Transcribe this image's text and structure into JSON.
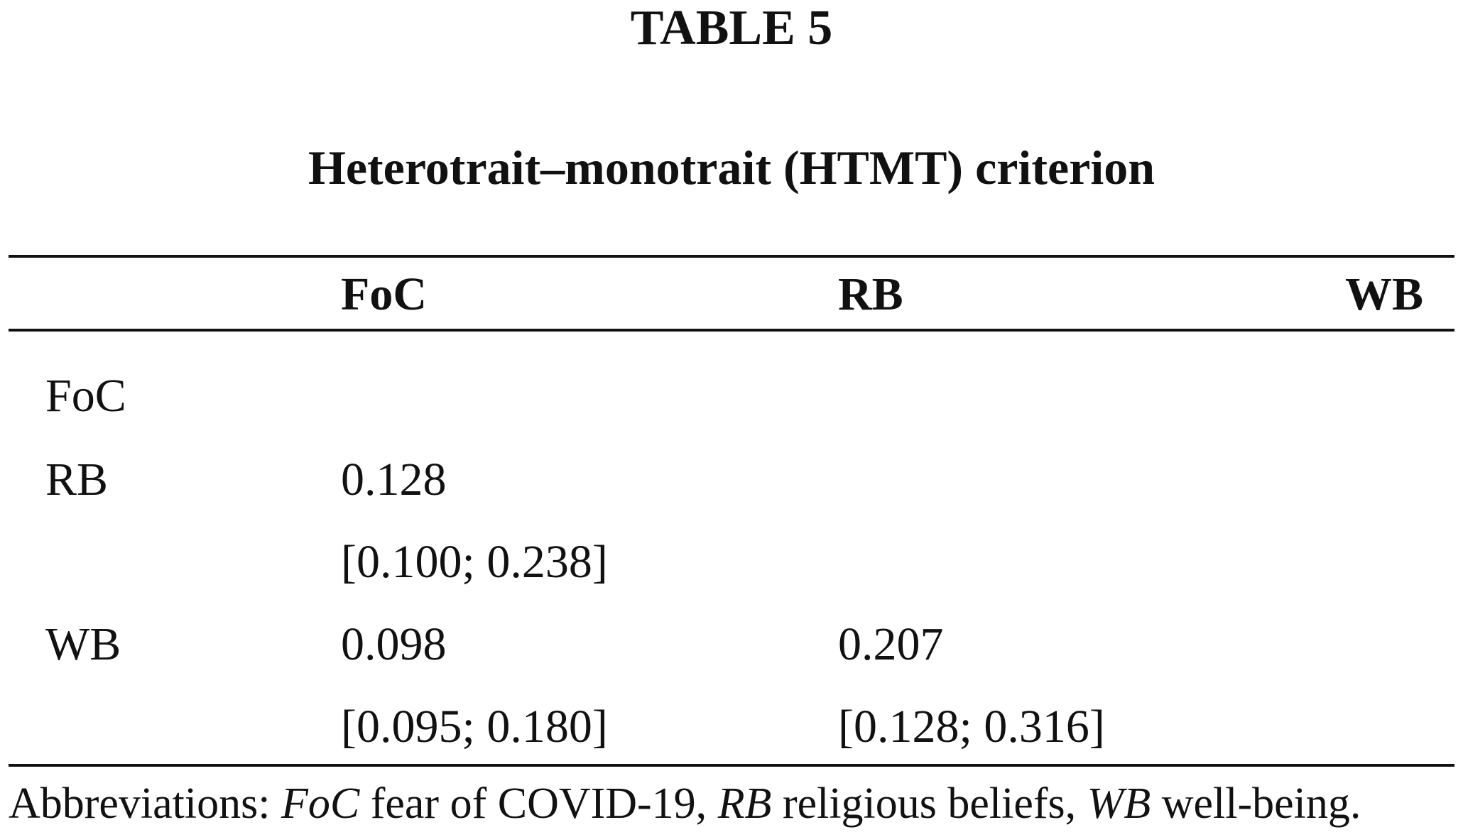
{
  "table": {
    "label": "TABLE 5",
    "title": "Heterotrait–monotrait (HTMT) criterion",
    "columns": [
      "FoC",
      "RB",
      "WB"
    ],
    "rows": [
      {
        "label": "FoC",
        "values": [
          "",
          "",
          ""
        ],
        "intervals": [
          "",
          "",
          ""
        ]
      },
      {
        "label": "RB",
        "values": [
          "0.128",
          "",
          ""
        ],
        "intervals": [
          "[0.100; 0.238]",
          "",
          ""
        ]
      },
      {
        "label": "WB",
        "values": [
          "0.098",
          "0.207",
          ""
        ],
        "intervals": [
          "[0.095; 0.180]",
          "[0.128; 0.316]",
          ""
        ]
      }
    ]
  },
  "footnote": {
    "prefix": "Abbreviations: ",
    "items": [
      {
        "abbr": "FoC",
        "desc": " fear of COVID-19, "
      },
      {
        "abbr": "RB",
        "desc": " religious beliefs, "
      },
      {
        "abbr": "WB",
        "desc": " well-being."
      }
    ]
  }
}
